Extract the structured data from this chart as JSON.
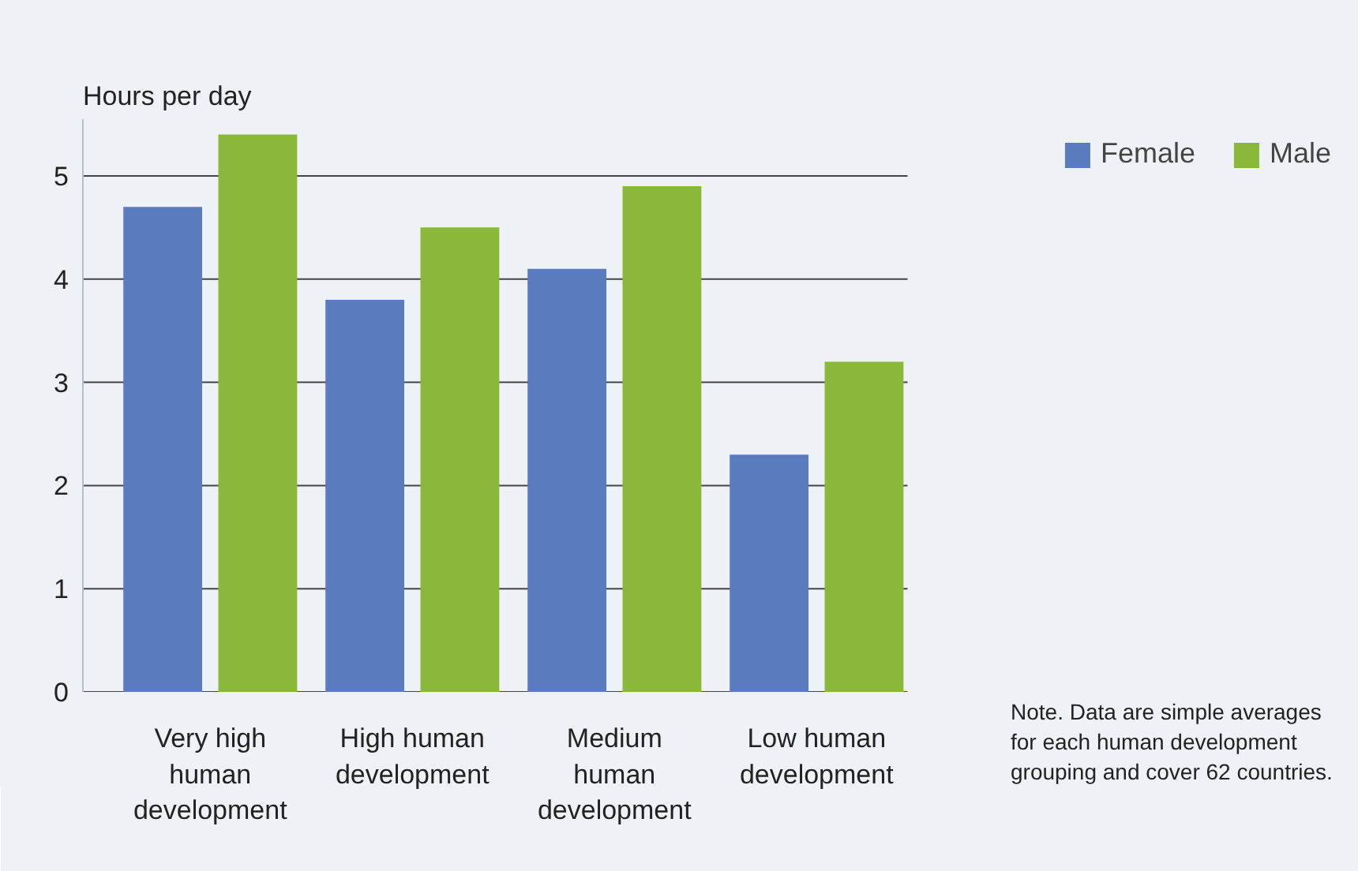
{
  "chart_data": {
    "type": "bar",
    "ylabel": "Hours per day",
    "categories": [
      "Very high human development",
      "High human development",
      "Medium human development",
      "Low human development"
    ],
    "series": [
      {
        "name": "Female",
        "color": "#5a7bbe",
        "values": [
          4.7,
          3.8,
          4.1,
          2.3
        ]
      },
      {
        "name": "Male",
        "color": "#8ab83a",
        "values": [
          5.4,
          4.5,
          4.9,
          3.2
        ]
      }
    ],
    "yticks": [
      0,
      1,
      2,
      3,
      4,
      5
    ],
    "ylim": [
      0,
      5.55
    ],
    "grid": "y",
    "legend": "top right",
    "annotations": [
      "Note. Data are simple averages for each human development grouping and cover 62 countries."
    ]
  }
}
